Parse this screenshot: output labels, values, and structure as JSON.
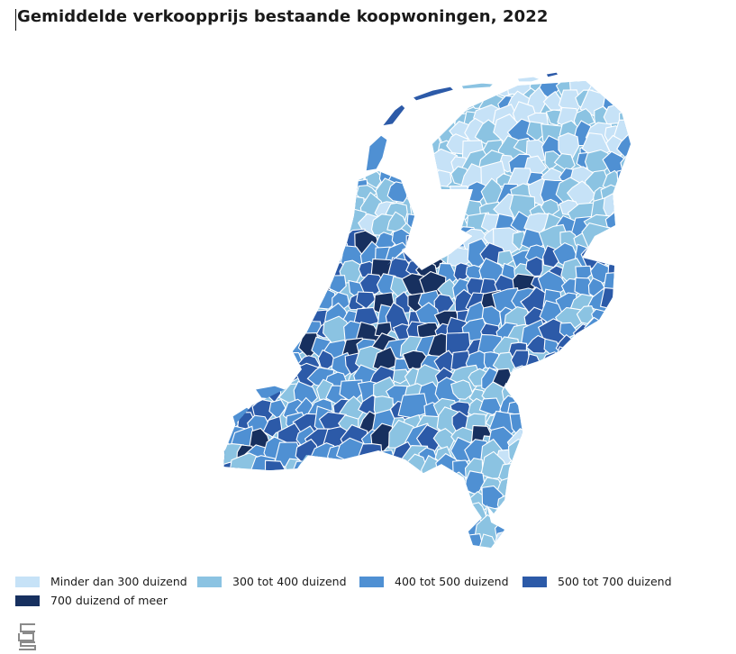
{
  "title": "Gemiddelde verkoopprijs bestaande koopwoningen, 2022",
  "legend": [
    {
      "label": "Minder dan 300 duizend",
      "color": "#c6e2f7"
    },
    {
      "label": "300 tot 400 duizend",
      "color": "#8bc3e2"
    },
    {
      "label": "400 tot 500 duizend",
      "color": "#4f90d3"
    },
    {
      "label": "500 tot 700 duizend",
      "color": "#2c5aa8"
    },
    {
      "label": "700 duizend of meer",
      "color": "#17305f"
    }
  ],
  "logo": {
    "name": "cbs-logo",
    "text": "cbs"
  }
}
